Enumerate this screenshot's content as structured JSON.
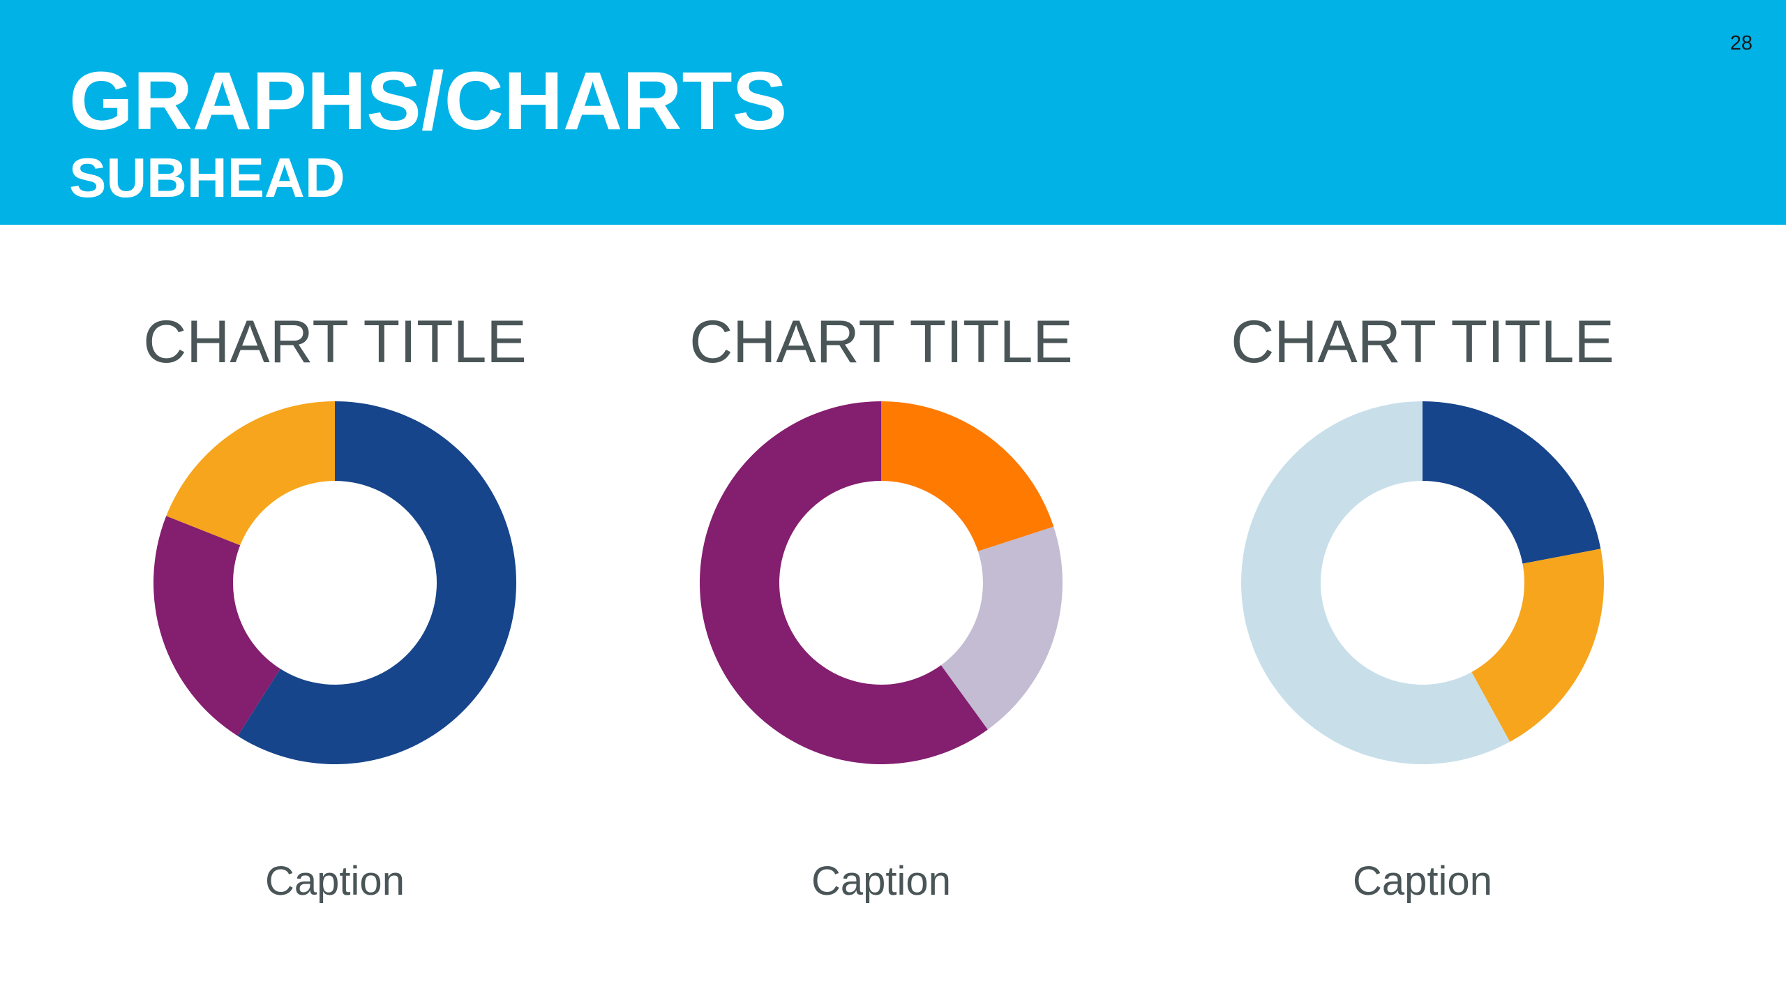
{
  "slide": {
    "title": "GRAPHS/CHARTS",
    "subtitle": "SUBHEAD",
    "page_number": "28",
    "header_color": "#00b2e6"
  },
  "chart_data": [
    {
      "type": "pie",
      "style": "donut",
      "title": "CHART TITLE",
      "caption": "Caption",
      "slices": [
        {
          "value": 59,
          "color": "#17458b"
        },
        {
          "value": 22,
          "color": "#841e6f"
        },
        {
          "value": 19,
          "color": "#f6a51c"
        }
      ]
    },
    {
      "type": "pie",
      "style": "donut",
      "title": "CHART TITLE",
      "caption": "Caption",
      "slices": [
        {
          "value": 20,
          "color": "#ff7a00"
        },
        {
          "value": 20,
          "color": "#c3bcd3"
        },
        {
          "value": 60,
          "color": "#841e6f"
        }
      ]
    },
    {
      "type": "pie",
      "style": "donut",
      "title": "CHART TITLE",
      "caption": "Caption",
      "slices": [
        {
          "value": 22,
          "color": "#17458b"
        },
        {
          "value": 20,
          "color": "#f6a51c"
        },
        {
          "value": 58,
          "color": "#c8dfea"
        }
      ]
    }
  ]
}
